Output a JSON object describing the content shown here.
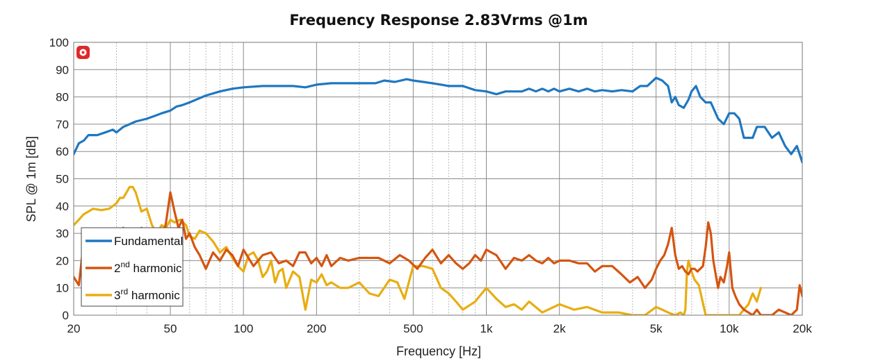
{
  "chart_data": {
    "type": "line",
    "title": "Frequency Response 2.83Vrms @1m",
    "xlabel": "Frequency [Hz]",
    "ylabel": "SPL @ 1m [dB]",
    "xscale": "log",
    "xlim": [
      20,
      20000
    ],
    "ylim": [
      0,
      100
    ],
    "x_ticks": [
      20,
      50,
      100,
      200,
      500,
      1000,
      2000,
      5000,
      10000,
      20000
    ],
    "x_tick_labels": [
      "20",
      "50",
      "100",
      "200",
      "500",
      "1k",
      "2k",
      "5k",
      "10k",
      "20k"
    ],
    "y_ticks": [
      0,
      10,
      20,
      30,
      40,
      50,
      60,
      70,
      80,
      90,
      100
    ],
    "y_tick_labels": [
      "0",
      "10",
      "20",
      "30",
      "40",
      "50",
      "60",
      "70",
      "80",
      "90",
      "100"
    ],
    "grid": true,
    "legend_position": "bottom-left",
    "series": [
      {
        "name": "Fundamental",
        "legend_main": "Fundamental",
        "legend_sup": "",
        "legend_rest": "",
        "color": "#1f77c0",
        "x": [
          20,
          21,
          22,
          23,
          24,
          25,
          27,
          29,
          30,
          32,
          34,
          36,
          38,
          40,
          43,
          46,
          50,
          53,
          56,
          60,
          70,
          80,
          90,
          100,
          120,
          140,
          160,
          180,
          200,
          230,
          260,
          300,
          350,
          380,
          420,
          470,
          500,
          550,
          600,
          650,
          700,
          800,
          900,
          1000,
          1100,
          1200,
          1300,
          1400,
          1500,
          1600,
          1700,
          1800,
          1900,
          2000,
          2200,
          2400,
          2600,
          2800,
          3000,
          3300,
          3600,
          4000,
          4300,
          4600,
          5000,
          5300,
          5600,
          5800,
          6000,
          6200,
          6500,
          6800,
          7000,
          7300,
          7600,
          8000,
          8400,
          9000,
          9500,
          10000,
          10500,
          11000,
          11500,
          12000,
          12500,
          13000,
          14000,
          15000,
          16000,
          17000,
          18000,
          19000,
          20000
        ],
        "y": [
          59,
          63,
          64,
          66,
          66,
          66,
          67,
          68,
          67,
          69,
          70,
          71,
          71.5,
          72,
          73,
          74,
          75,
          76.5,
          77,
          78,
          80.5,
          82,
          83,
          83.5,
          84,
          84,
          84,
          83.5,
          84.5,
          85,
          85,
          85,
          85,
          86,
          85.5,
          86.5,
          86,
          85.5,
          85,
          84.5,
          84,
          84,
          82.5,
          82,
          81,
          82,
          82,
          82,
          83,
          82,
          83,
          82,
          83,
          82,
          83,
          82,
          83,
          82,
          82.5,
          82,
          82.5,
          82,
          84,
          84,
          87,
          86,
          84,
          78,
          80,
          77,
          76,
          79,
          82,
          84,
          80,
          78,
          78,
          72,
          70,
          74,
          74,
          72,
          65,
          65,
          65,
          69,
          69,
          65,
          67,
          62,
          59,
          62,
          56
        ]
      },
      {
        "name": "2nd harmonic",
        "legend_main": "2",
        "legend_sup": "nd",
        "legend_rest": " harmonic",
        "color": "#d45510",
        "x": [
          20,
          21,
          22,
          23,
          25,
          27,
          30,
          32,
          34,
          36,
          38,
          40,
          42,
          44,
          46,
          48,
          50,
          52,
          54,
          56,
          58,
          60,
          63,
          66,
          70,
          75,
          80,
          85,
          90,
          95,
          100,
          110,
          120,
          130,
          140,
          150,
          160,
          170,
          180,
          190,
          200,
          210,
          220,
          230,
          250,
          270,
          300,
          330,
          360,
          400,
          440,
          480,
          520,
          560,
          600,
          650,
          700,
          750,
          800,
          850,
          900,
          950,
          1000,
          1100,
          1200,
          1300,
          1400,
          1500,
          1600,
          1700,
          1800,
          1900,
          2000,
          2200,
          2400,
          2600,
          2800,
          3000,
          3300,
          3600,
          3900,
          4200,
          4500,
          4800,
          5000,
          5200,
          5400,
          5600,
          5800,
          6000,
          6200,
          6400,
          6600,
          6800,
          7000,
          7200,
          7400,
          7600,
          7800,
          8000,
          8200,
          8400,
          8600,
          8800,
          9000,
          9200,
          9500,
          9800,
          10000,
          10300,
          10600,
          11000,
          11500,
          12000,
          12500,
          13000,
          13500,
          14000,
          15000,
          16000,
          17000,
          18000,
          19000,
          19500,
          20000
        ],
        "y": [
          14,
          11,
          27,
          31,
          29,
          30,
          30,
          32,
          28,
          24,
          32,
          30,
          28,
          22,
          26,
          34,
          45,
          38,
          32,
          35,
          28,
          30,
          25,
          22,
          17,
          23,
          20,
          24,
          22,
          18,
          24,
          18,
          22,
          23,
          19,
          20,
          18,
          23,
          23,
          19,
          21,
          18,
          22,
          18,
          21,
          20,
          21,
          21,
          21,
          19,
          22,
          20,
          17,
          21,
          24,
          19,
          22,
          19,
          17,
          19,
          22,
          20,
          24,
          22,
          17,
          21,
          20,
          22,
          20,
          19,
          21,
          19,
          20,
          20,
          19,
          19,
          16,
          18,
          18,
          15,
          12,
          14,
          10,
          13,
          17,
          20,
          22,
          26,
          32,
          22,
          17,
          18,
          16,
          15,
          17,
          17,
          16,
          17,
          18,
          25,
          34,
          30,
          20,
          15,
          10,
          14,
          12,
          18,
          23,
          10,
          7,
          4,
          2,
          1,
          0,
          2,
          0,
          0,
          0,
          2,
          1,
          0,
          2,
          11,
          7
        ]
      },
      {
        "name": "3rd harmonic",
        "legend_main": "3",
        "legend_sup": "rd",
        "legend_rest": " harmonic",
        "color": "#e8ad10",
        "x": [
          20,
          21,
          22,
          23,
          24,
          26,
          28,
          30,
          31,
          32,
          33,
          34,
          35,
          36,
          38,
          40,
          42,
          44,
          46,
          48,
          50,
          52,
          55,
          58,
          60,
          63,
          66,
          70,
          75,
          80,
          85,
          90,
          95,
          100,
          105,
          110,
          115,
          120,
          125,
          130,
          135,
          140,
          145,
          150,
          160,
          170,
          180,
          190,
          200,
          210,
          220,
          230,
          250,
          270,
          300,
          330,
          360,
          400,
          430,
          460,
          500,
          550,
          600,
          650,
          700,
          750,
          800,
          900,
          1000,
          1100,
          1200,
          1300,
          1400,
          1500,
          1700,
          2000,
          2300,
          2600,
          3000,
          3500,
          4000,
          4500,
          5000,
          5300,
          5600,
          6000,
          6300,
          6500,
          6600,
          6700,
          6800,
          7000,
          7200,
          7500,
          8000,
          8500,
          9000,
          9500,
          10000,
          11000,
          12000,
          12500,
          13000,
          13500
        ],
        "y": [
          33,
          35,
          37,
          38,
          39,
          38.5,
          39,
          41,
          43,
          43,
          45,
          47,
          47,
          45,
          38,
          39,
          33,
          30,
          33,
          32,
          35,
          34,
          35,
          33,
          29,
          28,
          31,
          30,
          27,
          23,
          25,
          21,
          18,
          16,
          22,
          23,
          20,
          14,
          16,
          20,
          12,
          16,
          17,
          10,
          16,
          14,
          2,
          13,
          12,
          15,
          11,
          12,
          10,
          10,
          12,
          8,
          7,
          13,
          12,
          6,
          18,
          18,
          17,
          10,
          8,
          5,
          2,
          5,
          10,
          6,
          3,
          4,
          2,
          5,
          1,
          4,
          2,
          3,
          1,
          1,
          0,
          0,
          3,
          2,
          1,
          0,
          1,
          0,
          2,
          16,
          20,
          16,
          13,
          11,
          0,
          0,
          0,
          0,
          0,
          0,
          4,
          8,
          5,
          10
        ]
      }
    ]
  }
}
